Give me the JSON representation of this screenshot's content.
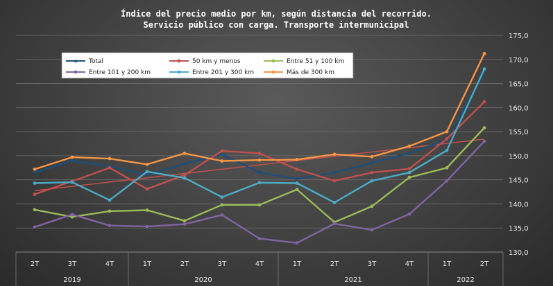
{
  "chart_data": {
    "type": "line",
    "title": "Índice del precio medio por km, según distancia del recorrido.",
    "subtitle": "Servicio público con carga. Transporte intermunicipal",
    "categories": [
      "2T",
      "3T",
      "4T",
      "1T",
      "2T",
      "3T",
      "4T",
      "1T",
      "2T",
      "3T",
      "4T",
      "1T",
      "2T"
    ],
    "years": [
      {
        "label": "2019",
        "start": 0,
        "end": 2
      },
      {
        "label": "2020",
        "start": 3,
        "end": 6
      },
      {
        "label": "2021",
        "start": 7,
        "end": 10
      },
      {
        "label": "2022",
        "start": 11,
        "end": 12
      }
    ],
    "ylim": [
      130,
      175
    ],
    "yticks": [
      "130,0",
      "135,0",
      "140,0",
      "145,0",
      "150,0",
      "155,0",
      "160,0",
      "165,0",
      "170,0",
      "175,0"
    ],
    "series": [
      {
        "name": "Total",
        "color": "#1f4e79",
        "marker": "star",
        "values": [
          146.5,
          149.0,
          147.8,
          146.0,
          148.3,
          150.3,
          146.5,
          145.2,
          146.5,
          148.5,
          150.5,
          153.3,
          167.3
        ]
      },
      {
        "name": "50 km y menos",
        "color": "#c0504d",
        "marker": "circle",
        "values": [
          142.0,
          144.7,
          147.5,
          143.1,
          146.0,
          151.0,
          150.5,
          147.2,
          144.8,
          146.5,
          147.3,
          153.5,
          161.2
        ]
      },
      {
        "name": "Entre 51 y 100 km",
        "color": "#9bbb59",
        "marker": "circle",
        "values": [
          138.8,
          137.3,
          138.5,
          138.7,
          136.5,
          139.8,
          139.8,
          143.0,
          136.2,
          139.5,
          145.5,
          147.5,
          155.8
        ]
      },
      {
        "name": "Entre 101 y 200 km",
        "color": "#8064a2",
        "marker": "circle",
        "values": [
          135.2,
          137.8,
          135.5,
          135.3,
          135.8,
          137.7,
          132.8,
          131.9,
          135.9,
          134.6,
          137.9,
          144.8,
          153.0
        ]
      },
      {
        "name": "Entre 201 y 300 km",
        "color": "#4bacc6",
        "marker": "circle",
        "values": [
          144.3,
          144.5,
          140.8,
          146.7,
          145.4,
          141.4,
          144.4,
          144.3,
          140.3,
          144.8,
          146.5,
          151.1,
          168.0
        ]
      },
      {
        "name": "Más de 300 km",
        "color": "#f79646",
        "marker": "circle",
        "values": [
          147.2,
          149.7,
          149.4,
          148.2,
          150.5,
          148.9,
          149.1,
          149.2,
          150.3,
          149.8,
          152.0,
          155.0,
          171.2
        ]
      }
    ],
    "trendline": {
      "series": "50 km y menos",
      "color": "#c0504d"
    },
    "legend_position": "top-left"
  }
}
